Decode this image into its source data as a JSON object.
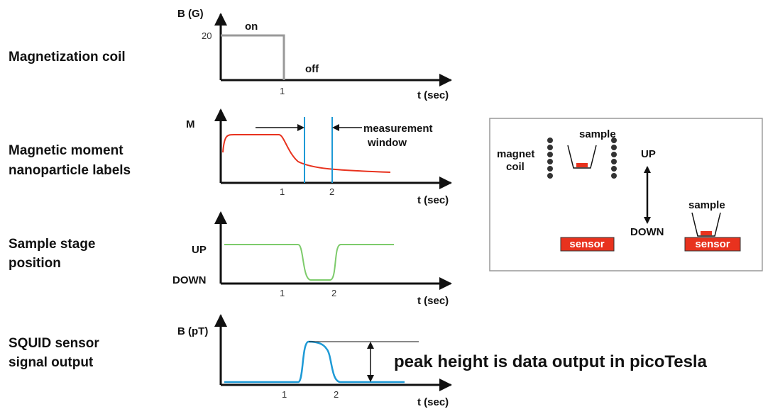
{
  "panels": [
    {
      "label": [
        "Magnetization coil"
      ],
      "y_axis": "B (G)",
      "x_axis": "t (sec)",
      "ticks": [
        "20",
        "1"
      ],
      "annotations": [
        "on",
        "off"
      ]
    },
    {
      "label": [
        "Magnetic moment",
        "nanoparticle labels"
      ],
      "y_axis": "M",
      "x_axis": "t (sec)",
      "ticks": [
        "1",
        "2"
      ],
      "annotations": [
        "measurement",
        "window"
      ]
    },
    {
      "label": [
        "Sample stage",
        "position"
      ],
      "y_axis": "",
      "x_axis": "t (sec)",
      "ticks": [
        "UP",
        "DOWN",
        "1",
        "2"
      ],
      "annotations": []
    },
    {
      "label": [
        "SQUID sensor",
        "signal output"
      ],
      "y_axis": "B (pT)",
      "x_axis": "t (sec)",
      "ticks": [
        "1",
        "2"
      ],
      "annotations": [
        "peak height is data output in picoTesla"
      ]
    }
  ],
  "inset": {
    "magnet": "magnet",
    "coil": "coil",
    "sample_up": "sample",
    "up": "UP",
    "down": "DOWN",
    "sample_down": "sample",
    "sensor_left": "sensor",
    "sensor_right": "sensor"
  }
}
